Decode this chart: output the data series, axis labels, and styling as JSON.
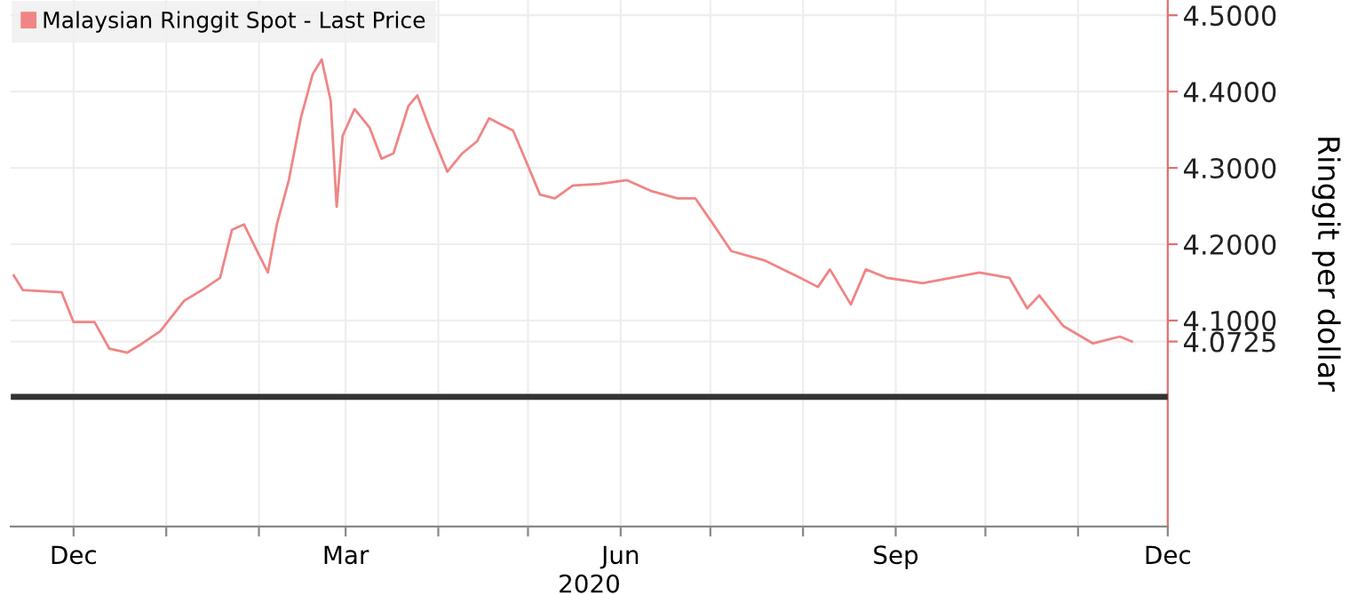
{
  "chart_data": {
    "type": "line",
    "xlabel": "2020",
    "ylabel": "Ringgit per dollar",
    "x": [
      "2019-11-11",
      "2019-11-14",
      "2019-11-27",
      "2019-12-01",
      "2019-12-08",
      "2019-12-13",
      "2019-12-19",
      "2019-12-24",
      "2019-12-30",
      "2020-01-07",
      "2020-01-13",
      "2020-01-19",
      "2020-01-23",
      "2020-01-27",
      "2020-01-30",
      "2020-02-04",
      "2020-02-07",
      "2020-02-11",
      "2020-02-15",
      "2020-02-19",
      "2020-02-22",
      "2020-02-25",
      "2020-02-27",
      "2020-02-29",
      "2020-03-04",
      "2020-03-09",
      "2020-03-13",
      "2020-03-17",
      "2020-03-22",
      "2020-03-25",
      "2020-03-29",
      "2020-04-04",
      "2020-04-09",
      "2020-04-14",
      "2020-04-18",
      "2020-04-26",
      "2020-04-30",
      "2020-05-05",
      "2020-05-10",
      "2020-05-16",
      "2020-05-25",
      "2020-06-03",
      "2020-06-11",
      "2020-06-20",
      "2020-06-26",
      "2020-07-02",
      "2020-07-08",
      "2020-07-19",
      "2020-07-31",
      "2020-08-06",
      "2020-08-10",
      "2020-08-17",
      "2020-08-22",
      "2020-08-29",
      "2020-09-10",
      "2020-09-29",
      "2020-10-09",
      "2020-10-15",
      "2020-10-19",
      "2020-10-27",
      "2020-11-06",
      "2020-11-15",
      "2020-11-19"
    ],
    "series": [
      {
        "name": "Malaysian Ringgit Spot - Last Price",
        "color": "#f08585",
        "values": [
          4.159,
          4.14,
          4.137,
          4.098,
          4.098,
          4.063,
          4.058,
          4.07,
          4.086,
          4.126,
          4.14,
          4.156,
          4.219,
          4.226,
          4.202,
          4.163,
          4.226,
          4.284,
          4.365,
          4.423,
          4.442,
          4.388,
          4.249,
          4.342,
          4.377,
          4.353,
          4.312,
          4.319,
          4.381,
          4.395,
          4.353,
          4.295,
          4.319,
          4.335,
          4.365,
          4.349,
          4.312,
          4.265,
          4.26,
          4.277,
          4.279,
          4.284,
          4.27,
          4.26,
          4.26,
          4.226,
          4.191,
          4.179,
          4.156,
          4.144,
          4.167,
          4.121,
          4.167,
          4.156,
          4.149,
          4.163,
          4.156,
          4.116,
          4.133,
          4.093,
          4.07,
          4.079,
          4.0725
        ]
      }
    ],
    "ref_lines": [
      {
        "axis": "y",
        "value": 4.0,
        "color": "#333333"
      }
    ],
    "xlim": [
      "2019-11-10",
      "2020-12-01"
    ],
    "xticks": [
      {
        "value": "2019-12-01",
        "label": "Dec"
      },
      {
        "value": "2020-01-01",
        "label": null
      },
      {
        "value": "2020-02-01",
        "label": null
      },
      {
        "value": "2020-03-01",
        "label": "Mar"
      },
      {
        "value": "2020-04-01",
        "label": null
      },
      {
        "value": "2020-05-01",
        "label": null
      },
      {
        "value": "2020-06-01",
        "label": "Jun"
      },
      {
        "value": "2020-07-01",
        "label": null
      },
      {
        "value": "2020-08-01",
        "label": null
      },
      {
        "value": "2020-09-01",
        "label": "Sep"
      },
      {
        "value": "2020-10-01",
        "label": null
      },
      {
        "value": "2020-11-01",
        "label": null
      },
      {
        "value": "2020-12-01",
        "label": "Dec"
      }
    ],
    "ylim": [
      3.83,
      4.52
    ],
    "yticks": [
      {
        "value": 4.0725,
        "label": "4.0725"
      },
      {
        "value": 4.1,
        "label": "4.1000"
      },
      {
        "value": 4.2,
        "label": "4.2000"
      },
      {
        "value": 4.3,
        "label": "4.3000"
      },
      {
        "value": 4.4,
        "label": "4.4000"
      },
      {
        "value": 4.5,
        "label": "4.5000"
      }
    ],
    "grid": true,
    "legend": "top left"
  }
}
